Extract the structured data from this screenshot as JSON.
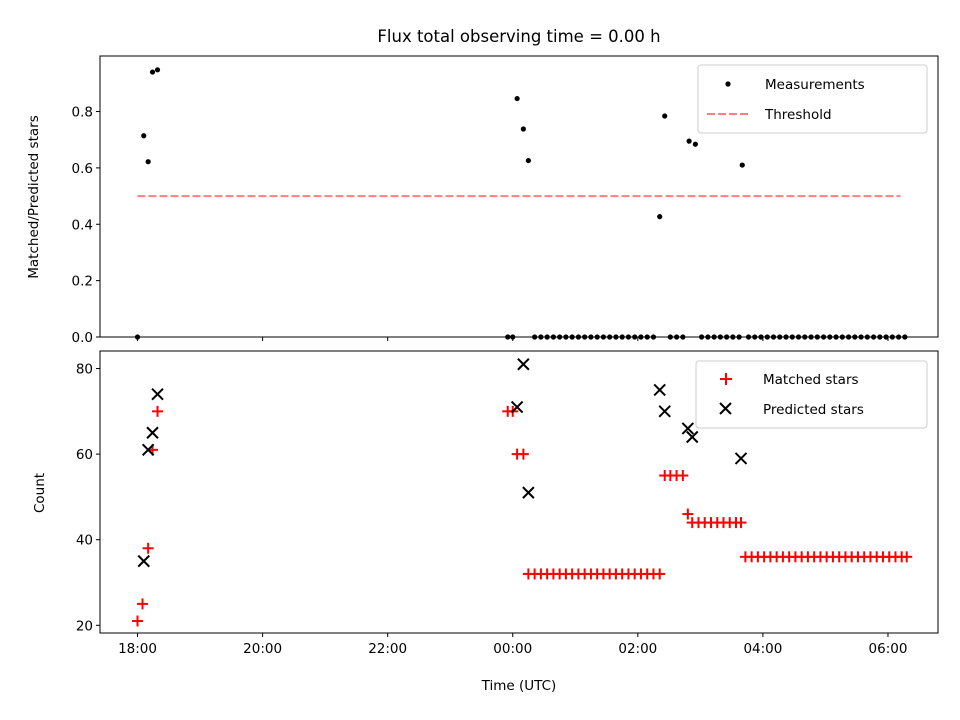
{
  "chart_data": [
    {
      "type": "scatter",
      "title": "Flux total observing time = 0.00 h",
      "xlabel": "",
      "ylabel": "Matched/Predicted stars",
      "x_unit": "hours since 18:00 UTC (day 1)",
      "xlim": [
        -0.6,
        12.8
      ],
      "ylim": [
        0.0,
        0.997
      ],
      "y_ticks": [
        0.0,
        0.2,
        0.4,
        0.6,
        0.8
      ],
      "y_tick_labels": [
        "0.0",
        "0.2",
        "0.4",
        "0.6",
        "0.8"
      ],
      "x_ticks": [
        0,
        2,
        4,
        6,
        8,
        10,
        12
      ],
      "x_tick_labels_shown": false,
      "legend_position": "upper right",
      "grid": false,
      "series": [
        {
          "name": "Measurements",
          "marker": "dot",
          "color": "#000000",
          "points": [
            [
              0.0,
              0.0
            ],
            [
              0.1,
              0.714
            ],
            [
              0.17,
              0.622
            ],
            [
              0.24,
              0.94
            ],
            [
              0.32,
              0.948
            ],
            [
              5.92,
              0.0
            ],
            [
              6.0,
              0.0
            ],
            [
              6.07,
              0.846
            ],
            [
              6.17,
              0.738
            ],
            [
              6.25,
              0.626
            ],
            [
              6.35,
              0.0
            ],
            [
              6.45,
              0.0
            ],
            [
              6.55,
              0.0
            ],
            [
              6.65,
              0.0
            ],
            [
              6.75,
              0.0
            ],
            [
              6.85,
              0.0
            ],
            [
              6.95,
              0.0
            ],
            [
              7.05,
              0.0
            ],
            [
              7.15,
              0.0
            ],
            [
              7.25,
              0.0
            ],
            [
              7.35,
              0.0
            ],
            [
              7.45,
              0.0
            ],
            [
              7.55,
              0.0
            ],
            [
              7.65,
              0.0
            ],
            [
              7.75,
              0.0
            ],
            [
              7.85,
              0.0
            ],
            [
              7.95,
              0.0
            ],
            [
              8.05,
              0.0
            ],
            [
              8.15,
              0.0
            ],
            [
              8.25,
              0.0
            ],
            [
              8.35,
              0.427
            ],
            [
              8.43,
              0.784
            ],
            [
              8.52,
              0.0
            ],
            [
              8.62,
              0.0
            ],
            [
              8.72,
              0.0
            ],
            [
              8.82,
              0.695
            ],
            [
              8.92,
              0.684
            ],
            [
              9.02,
              0.0
            ],
            [
              9.12,
              0.0
            ],
            [
              9.22,
              0.0
            ],
            [
              9.32,
              0.0
            ],
            [
              9.42,
              0.0
            ],
            [
              9.52,
              0.0
            ],
            [
              9.62,
              0.0
            ],
            [
              9.67,
              0.61
            ],
            [
              9.77,
              0.0
            ],
            [
              9.87,
              0.0
            ],
            [
              9.97,
              0.0
            ],
            [
              10.07,
              0.0
            ],
            [
              10.17,
              0.0
            ],
            [
              10.27,
              0.0
            ],
            [
              10.37,
              0.0
            ],
            [
              10.47,
              0.0
            ],
            [
              10.57,
              0.0
            ],
            [
              10.67,
              0.0
            ],
            [
              10.77,
              0.0
            ],
            [
              10.87,
              0.0
            ],
            [
              10.97,
              0.0
            ],
            [
              11.07,
              0.0
            ],
            [
              11.17,
              0.0
            ],
            [
              11.27,
              0.0
            ],
            [
              11.37,
              0.0
            ],
            [
              11.47,
              0.0
            ],
            [
              11.57,
              0.0
            ],
            [
              11.67,
              0.0
            ],
            [
              11.77,
              0.0
            ],
            [
              11.87,
              0.0
            ],
            [
              11.97,
              0.0
            ],
            [
              12.07,
              0.0
            ],
            [
              12.17,
              0.0
            ],
            [
              12.27,
              0.0
            ]
          ]
        },
        {
          "name": "Threshold",
          "type": "line",
          "style": "dashed",
          "color": "#ff7f7f",
          "x": [
            0.0,
            12.2
          ],
          "y": [
            0.5,
            0.5
          ]
        }
      ]
    },
    {
      "type": "scatter",
      "title": "",
      "xlabel": "Time (UTC)",
      "ylabel": "Count",
      "x_unit": "hours since 18:00 UTC (day 1)",
      "xlim": [
        -0.6,
        12.8
      ],
      "ylim": [
        18.2,
        84.1
      ],
      "y_ticks": [
        20,
        40,
        60,
        80
      ],
      "y_tick_labels": [
        "20",
        "40",
        "60",
        "80"
      ],
      "x_ticks": [
        0,
        2,
        4,
        6,
        8,
        10,
        12
      ],
      "x_tick_labels": [
        "18:00",
        "20:00",
        "22:00",
        "00:00",
        "02:00",
        "04:00",
        "06:00"
      ],
      "legend_position": "upper right",
      "grid": false,
      "series": [
        {
          "name": "Matched stars",
          "marker": "plus",
          "color": "#ff0000",
          "points": [
            [
              0.0,
              21
            ],
            [
              0.08,
              25
            ],
            [
              0.17,
              38
            ],
            [
              0.24,
              61
            ],
            [
              0.32,
              70
            ],
            [
              5.92,
              70
            ],
            [
              6.0,
              70
            ],
            [
              6.07,
              60
            ],
            [
              6.17,
              60
            ],
            [
              6.25,
              32
            ],
            [
              6.35,
              32
            ],
            [
              6.45,
              32
            ],
            [
              6.55,
              32
            ],
            [
              6.65,
              32
            ],
            [
              6.75,
              32
            ],
            [
              6.85,
              32
            ],
            [
              6.95,
              32
            ],
            [
              7.05,
              32
            ],
            [
              7.15,
              32
            ],
            [
              7.25,
              32
            ],
            [
              7.35,
              32
            ],
            [
              7.45,
              32
            ],
            [
              7.55,
              32
            ],
            [
              7.65,
              32
            ],
            [
              7.75,
              32
            ],
            [
              7.85,
              32
            ],
            [
              7.95,
              32
            ],
            [
              8.05,
              32
            ],
            [
              8.15,
              32
            ],
            [
              8.25,
              32
            ],
            [
              8.35,
              32
            ],
            [
              8.43,
              55
            ],
            [
              8.52,
              55
            ],
            [
              8.62,
              55
            ],
            [
              8.72,
              55
            ],
            [
              8.8,
              46
            ],
            [
              8.87,
              44
            ],
            [
              8.97,
              44
            ],
            [
              9.07,
              44
            ],
            [
              9.17,
              44
            ],
            [
              9.27,
              44
            ],
            [
              9.37,
              44
            ],
            [
              9.47,
              44
            ],
            [
              9.57,
              44
            ],
            [
              9.65,
              44
            ],
            [
              9.72,
              36
            ],
            [
              9.82,
              36
            ],
            [
              9.92,
              36
            ],
            [
              10.02,
              36
            ],
            [
              10.12,
              36
            ],
            [
              10.22,
              36
            ],
            [
              10.32,
              36
            ],
            [
              10.42,
              36
            ],
            [
              10.52,
              36
            ],
            [
              10.62,
              36
            ],
            [
              10.72,
              36
            ],
            [
              10.82,
              36
            ],
            [
              10.92,
              36
            ],
            [
              11.02,
              36
            ],
            [
              11.12,
              36
            ],
            [
              11.22,
              36
            ],
            [
              11.32,
              36
            ],
            [
              11.42,
              36
            ],
            [
              11.52,
              36
            ],
            [
              11.62,
              36
            ],
            [
              11.72,
              36
            ],
            [
              11.82,
              36
            ],
            [
              11.92,
              36
            ],
            [
              12.02,
              36
            ],
            [
              12.12,
              36
            ],
            [
              12.22,
              36
            ],
            [
              12.3,
              36
            ]
          ]
        },
        {
          "name": "Predicted stars",
          "marker": "x",
          "color": "#000000",
          "points": [
            [
              0.1,
              35
            ],
            [
              0.17,
              61
            ],
            [
              0.24,
              65
            ],
            [
              0.32,
              74
            ],
            [
              6.07,
              71
            ],
            [
              6.17,
              81
            ],
            [
              6.25,
              51
            ],
            [
              8.35,
              75
            ],
            [
              8.43,
              70
            ],
            [
              8.8,
              66
            ],
            [
              8.87,
              64
            ],
            [
              9.65,
              59
            ]
          ]
        }
      ]
    }
  ]
}
